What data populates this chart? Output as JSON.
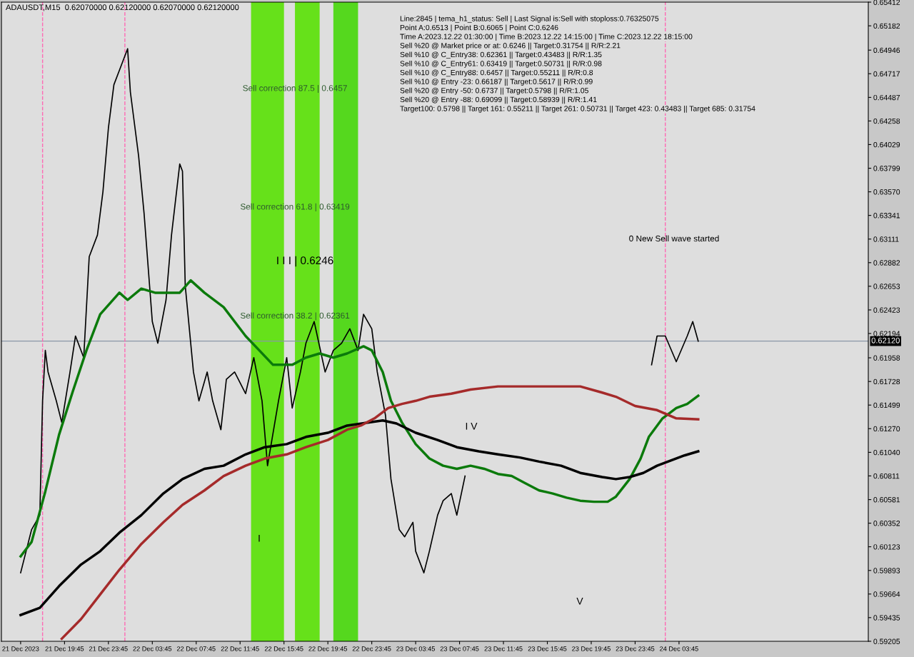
{
  "chart_data": {
    "type": "line",
    "title": "ADAUSDT,M15  0.62070000 0.62120000 0.62070000 0.62120000",
    "xlim": [
      "2023-12-21T14:00",
      "2023-12-24T21:00"
    ],
    "xticks": [
      {
        "value": "2023-12-21T15:45",
        "label": "21 Dec 2023"
      },
      {
        "value": "2023-12-21T19:45",
        "label": "21 Dec 19:45"
      },
      {
        "value": "2023-12-21T23:45",
        "label": "21 Dec 23:45"
      },
      {
        "value": "2023-12-22T03:45",
        "label": "22 Dec 03:45"
      },
      {
        "value": "2023-12-22T07:45",
        "label": "22 Dec 07:45"
      },
      {
        "value": "2023-12-22T11:45",
        "label": "22 Dec 11:45"
      },
      {
        "value": "2023-12-22T15:45",
        "label": "22 Dec 15:45"
      },
      {
        "value": "2023-12-22T19:45",
        "label": "22 Dec 19:45"
      },
      {
        "value": "2023-12-22T23:45",
        "label": "22 Dec 23:45"
      },
      {
        "value": "2023-12-23T03:45",
        "label": "23 Dec 03:45"
      },
      {
        "value": "2023-12-23T07:45",
        "label": "23 Dec 07:45"
      },
      {
        "value": "2023-12-23T11:45",
        "label": "23 Dec 11:45"
      },
      {
        "value": "2023-12-23T15:45",
        "label": "23 Dec 15:45"
      },
      {
        "value": "2023-12-23T19:45",
        "label": "23 Dec 19:45"
      },
      {
        "value": "2023-12-23T23:45",
        "label": "23 Dec 23:45"
      },
      {
        "value": "2023-12-24T03:45",
        "label": "24 Dec 03:45"
      }
    ],
    "ylim": [
      0.59205,
      0.65412
    ],
    "yticks": [
      0.65412,
      0.65182,
      0.64946,
      0.64717,
      0.64487,
      0.64258,
      0.64029,
      0.63799,
      {
        "value": 0.6357,
        "label": "0.63570"
      },
      0.63341,
      0.63111,
      0.62882,
      0.62653,
      0.62423,
      0.62194,
      0.61958,
      0.61728,
      0.61499,
      {
        "value": 0.6127,
        "label": "0.61270"
      },
      {
        "value": 0.6104,
        "label": "0.61040"
      },
      0.60811,
      0.60581,
      0.60352,
      0.60123,
      0.59893,
      0.59664,
      0.59435,
      0.59205
    ],
    "grid": false,
    "series": [
      {
        "color": "#000000",
        "x": [
          "2023-12-21T15:45",
          "2023-12-21T16:45",
          "2023-12-21T17:30",
          "2023-12-21T17:45",
          "2023-12-21T18:00",
          "2023-12-21T18:15",
          "2023-12-21T19:00",
          "2023-12-21T19:30",
          "2023-12-21T20:15",
          "2023-12-21T20:45",
          "2023-12-21T21:30",
          "2023-12-21T22:00",
          "2023-12-21T22:45",
          "2023-12-21T23:15",
          "2023-12-21T23:45",
          "2023-12-22T00:15",
          "2023-12-22T00:45",
          "2023-12-22T01:30",
          "2023-12-22T01:45",
          "2023-12-22T02:30",
          "2023-12-22T03:00",
          "2023-12-22T03:45",
          "2023-12-22T04:15",
          "2023-12-22T05:00",
          "2023-12-22T05:30",
          "2023-12-22T06:15",
          "2023-12-22T06:30",
          "2023-12-22T06:45",
          "2023-12-22T07:30",
          "2023-12-22T08:00",
          "2023-12-22T08:45",
          "2023-12-22T09:15",
          "2023-12-22T10:00",
          "2023-12-22T10:30",
          "2023-12-22T11:15",
          "2023-12-22T12:15",
          "2023-12-22T13:00",
          "2023-12-22T13:45",
          "2023-12-22T14:15",
          "2023-12-22T15:15",
          "2023-12-22T16:00",
          "2023-12-22T16:30",
          "2023-12-22T17:15",
          "2023-12-22T17:45",
          "2023-12-22T18:30",
          "2023-12-22T19:30",
          "2023-12-22T20:15",
          "2023-12-22T21:00",
          "2023-12-22T21:45",
          "2023-12-22T22:30",
          "2023-12-22T23:00",
          "2023-12-22T23:45",
          "2023-12-23T00:15",
          "2023-12-23T01:00",
          "2023-12-23T01:30",
          "2023-12-23T02:15",
          "2023-12-23T02:45",
          "2023-12-23T03:30",
          "2023-12-23T03:45",
          "2023-12-23T04:30",
          "2023-12-23T05:00",
          "2023-12-23T05:45",
          "2023-12-23T06:15",
          "2023-12-23T07:00",
          "2023-12-23T07:30",
          "2023-12-23T08:15",
          null,
          "2023-12-24T01:15",
          "2023-12-24T01:45",
          "2023-12-24T02:30",
          "2023-12-24T03:30",
          "2023-12-24T04:30",
          "2023-12-24T05:00",
          "2023-12-24T05:30"
        ],
        "values": [
          0.5987,
          0.6029,
          0.6043,
          0.6154,
          0.6203,
          0.6182,
          0.6154,
          0.6133,
          0.6182,
          0.6217,
          0.6196,
          0.6294,
          0.6315,
          0.6357,
          0.6419,
          0.6461,
          0.6475,
          0.6496,
          0.6454,
          0.6392,
          0.6336,
          0.6231,
          0.621,
          0.6252,
          0.6315,
          0.6384,
          0.6377,
          0.6266,
          0.6182,
          0.6154,
          0.6182,
          0.6154,
          0.6126,
          0.6175,
          0.6182,
          0.6161,
          0.6196,
          0.6154,
          0.6091,
          0.6154,
          0.6196,
          0.6147,
          0.6182,
          0.621,
          0.6231,
          0.6182,
          0.6203,
          0.621,
          0.6224,
          0.6203,
          0.6238,
          0.6224,
          0.6182,
          0.614,
          0.6078,
          0.6029,
          0.6022,
          0.6036,
          0.6008,
          0.5987,
          0.6008,
          0.6043,
          0.6057,
          0.6064,
          0.6043,
          0.6081,
          null,
          0.6189,
          0.6217,
          0.6217,
          0.6192,
          0.6217,
          0.6231,
          0.6212
        ]
      },
      {
        "color": "#0b7a0b",
        "x": [
          "2023-12-21T15:45",
          "2023-12-21T16:45",
          "2023-12-21T18:00",
          "2023-12-21T19:15",
          "2023-12-21T20:30",
          "2023-12-21T21:45",
          "2023-12-21T23:00",
          "2023-12-22T00:45",
          "2023-12-22T01:30",
          "2023-12-22T02:45",
          "2023-12-22T04:00",
          "2023-12-22T05:00",
          "2023-12-22T06:15",
          "2023-12-22T07:15",
          "2023-12-22T08:30",
          "2023-12-22T10:15",
          "2023-12-22T12:15",
          "2023-12-22T13:30",
          "2023-12-22T14:45",
          "2023-12-22T16:30",
          "2023-12-22T17:45",
          "2023-12-22T19:00",
          "2023-12-22T20:15",
          "2023-12-22T21:30",
          "2023-12-22T23:00",
          "2023-12-22T23:45",
          "2023-12-23T00:45",
          "2023-12-23T01:30",
          "2023-12-23T02:30",
          "2023-12-23T03:45",
          "2023-12-23T05:00",
          "2023-12-23T06:15",
          "2023-12-23T07:30",
          "2023-12-23T08:45",
          "2023-12-23T10:00",
          "2023-12-23T11:15",
          "2023-12-23T12:30",
          "2023-12-23T13:45",
          "2023-12-23T15:00",
          "2023-12-23T16:15",
          "2023-12-23T17:30",
          "2023-12-23T18:45",
          "2023-12-23T20:00",
          "2023-12-23T21:15",
          "2023-12-23T22:00",
          "2023-12-23T23:15",
          "2023-12-24T00:15",
          "2023-12-24T01:00",
          "2023-12-24T02:15",
          "2023-12-24T03:30",
          "2023-12-24T04:30",
          "2023-12-24T05:30"
        ],
        "values": [
          0.6003,
          0.6017,
          0.6066,
          0.6121,
          0.6163,
          0.6203,
          0.6238,
          0.6259,
          0.6252,
          0.6263,
          0.6259,
          0.6259,
          0.6259,
          0.6271,
          0.6259,
          0.6245,
          0.6217,
          0.6203,
          0.6189,
          0.6189,
          0.6196,
          0.62,
          0.6196,
          0.62,
          0.6207,
          0.6203,
          0.6182,
          0.6154,
          0.6133,
          0.6112,
          0.6098,
          0.6091,
          0.6088,
          0.6091,
          0.6088,
          0.6083,
          0.6081,
          0.6074,
          0.6067,
          0.6064,
          0.606,
          0.6057,
          0.6056,
          0.6056,
          0.6061,
          0.6078,
          0.6098,
          0.6119,
          0.6137,
          0.6147,
          0.6151,
          0.6159
        ]
      },
      {
        "color": "#000000",
        "x": [
          "2023-12-21T15:45",
          "2023-12-21T17:30",
          "2023-12-21T19:15",
          "2023-12-21T21:15",
          "2023-12-21T23:00",
          "2023-12-22T00:45",
          "2023-12-22T02:45",
          "2023-12-22T04:45",
          "2023-12-22T06:30",
          "2023-12-22T08:30",
          "2023-12-22T10:15",
          "2023-12-22T12:15",
          "2023-12-22T14:00",
          "2023-12-22T16:00",
          "2023-12-22T17:45",
          "2023-12-22T19:45",
          "2023-12-22T21:30",
          "2023-12-22T23:30",
          "2023-12-23T00:45",
          "2023-12-23T02:00",
          "2023-12-23T03:45",
          "2023-12-23T05:45",
          "2023-12-23T07:30",
          "2023-12-23T09:30",
          "2023-12-23T11:15",
          "2023-12-23T13:15",
          "2023-12-23T15:00",
          "2023-12-23T17:00",
          "2023-12-23T18:45",
          "2023-12-23T20:45",
          "2023-12-23T22:00",
          "2023-12-23T23:15",
          "2023-12-24T00:30",
          "2023-12-24T01:45",
          "2023-12-24T03:00",
          "2023-12-24T04:15",
          "2023-12-24T05:30"
        ],
        "values": [
          0.5946,
          0.5953,
          0.5974,
          0.5995,
          0.6008,
          0.6026,
          0.6043,
          0.6064,
          0.6078,
          0.6088,
          0.6091,
          0.6102,
          0.6109,
          0.6112,
          0.6119,
          0.6123,
          0.613,
          0.6133,
          0.6135,
          0.6132,
          0.6123,
          0.6116,
          0.6109,
          0.6105,
          0.6102,
          0.6099,
          0.6095,
          0.6091,
          0.6084,
          0.608,
          0.6078,
          0.608,
          0.6084,
          0.6091,
          0.6096,
          0.6101,
          0.6105
        ]
      },
      {
        "color": "#a52a2a",
        "x": [
          "2023-12-21T19:30",
          "2023-12-21T21:15",
          "2023-12-21T23:00",
          "2023-12-22T00:45",
          "2023-12-22T02:45",
          "2023-12-22T04:45",
          "2023-12-22T06:30",
          "2023-12-22T08:30",
          "2023-12-22T10:15",
          "2023-12-22T12:15",
          "2023-12-22T14:00",
          "2023-12-22T16:00",
          "2023-12-22T17:45",
          "2023-12-22T19:45",
          "2023-12-22T21:30",
          "2023-12-22T22:45",
          "2023-12-23T00:00",
          "2023-12-23T01:15",
          "2023-12-23T02:30",
          "2023-12-23T03:45",
          "2023-12-23T05:00",
          "2023-12-23T07:00",
          "2023-12-23T08:45",
          "2023-12-23T11:15",
          "2023-12-23T12:30",
          "2023-12-23T15:00",
          "2023-12-23T17:30",
          "2023-12-23T18:45",
          "2023-12-23T20:45",
          "2023-12-23T22:00",
          "2023-12-23T23:45",
          "2023-12-24T01:45",
          "2023-12-24T03:30",
          "2023-12-24T05:30"
        ],
        "values": [
          0.5923,
          0.5942,
          0.5966,
          0.599,
          0.6015,
          0.6036,
          0.6053,
          0.6067,
          0.6081,
          0.6091,
          0.6098,
          0.6102,
          0.6109,
          0.6116,
          0.6126,
          0.613,
          0.6137,
          0.6147,
          0.6151,
          0.6154,
          0.6158,
          0.6161,
          0.6165,
          0.6168,
          0.6168,
          0.6168,
          0.6168,
          0.6168,
          0.6162,
          0.6158,
          0.6149,
          0.6145,
          0.6137,
          0.6136
        ]
      }
    ],
    "bands": [
      {
        "axis": "x",
        "from": "2023-12-22T12:45",
        "to": "2023-12-22T15:45",
        "color": "#66e11a"
      },
      {
        "axis": "x",
        "from": "2023-12-22T16:45",
        "to": "2023-12-22T19:00",
        "color": "#66e11a"
      },
      {
        "axis": "x",
        "from": "2023-12-22T20:15",
        "to": "2023-12-22T22:30",
        "color": "#55d81e"
      }
    ],
    "ref_lines": [
      {
        "axis": "y",
        "value": 0.6212,
        "label": "0.62120",
        "color": "#8a96a8"
      },
      {
        "axis": "x",
        "value": "2023-12-21T17:45",
        "color": "#ff69b4",
        "line_style": "dashed"
      },
      {
        "axis": "x",
        "value": "2023-12-22T01:15",
        "color": "#ff69b4",
        "line_style": "dashed"
      },
      {
        "axis": "x",
        "value": "2023-12-24T02:30",
        "color": "#ff69b4",
        "line_style": "dashed"
      }
    ],
    "annotations": [
      "Line:2845 | tema_h1_status: Sell | Last Signal is:Sell with stoploss:0.76325075",
      "Point A:0.6513 | Point B:0.6065 | Point C:0.6246",
      "Time A:2023.12.22 01:30:00 | Time B:2023.12.22 14:15:00 | Time C:2023.12.22 18:15:00",
      "Sell %20 @ Market price or at: 0.6246 || Target:0.31754 || R/R:2.21",
      "Sell %10 @ C_Entry38: 0.62361 || Target:0.43483 || R/R:1.35",
      "Sell %10 @ C_Entry61: 0.63419 || Target:0.50731 || R/R:0.98",
      "Sell %10 @ C_Entry88: 0.6457 || Target:0.55211 || R/R:0.8",
      "Sell %10 @ Entry -23: 0.66187 || Target:0.5617 || R/R:0.99",
      "Sell %20 @ Entry -50: 0.6737 || Target:0.5798 || R/R:1.05",
      "Sell %20 @ Entry -88: 0.69099 || Target:0.58939 || R/R:1.41",
      "Target100: 0.5798 || Target 161: 0.55211 || Target 261: 0.50731 || Target 423: 0.43483 || Target 685: 0.31754",
      "I I I | 0.6246",
      "I V",
      "V",
      "I",
      "0 New Sell wave started",
      {
        "text": "Sell correction 87.5 | 0.6457",
        "x": "2023-12-22T16:45",
        "y": 0.6457
      },
      {
        "text": "Sell correction 61.8 | 0.63419",
        "x": "2023-12-22T16:45",
        "y": 0.63419
      },
      {
        "text": "Sell correction 38.2 | 0.62361",
        "x": "2023-12-22T16:45",
        "y": 0.62361
      }
    ]
  }
}
